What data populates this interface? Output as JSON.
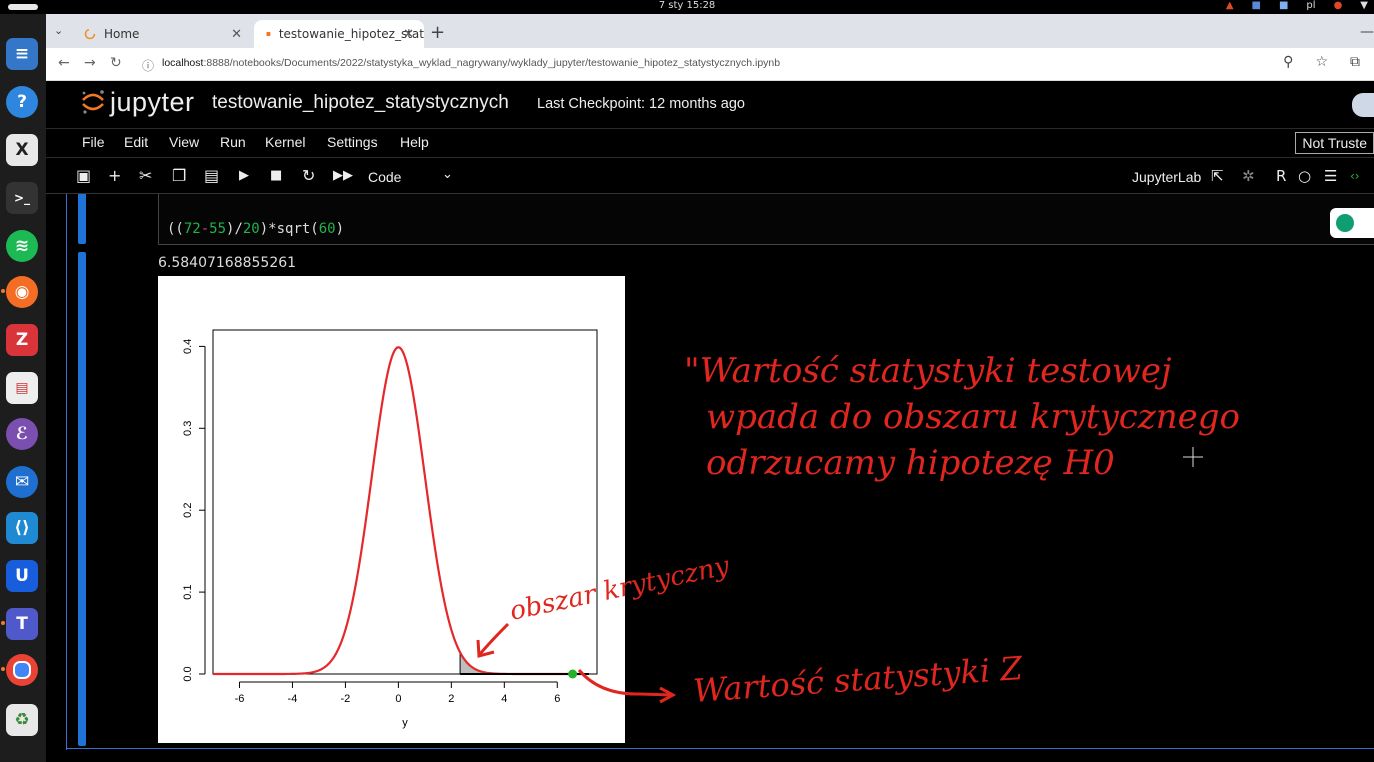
{
  "topbar": {
    "clock": "7 sty  15:28",
    "lang": "pl"
  },
  "browser": {
    "tabs": [
      {
        "label": "Home"
      },
      {
        "label": "testowanie_hipotez_stat"
      }
    ],
    "url_host": "localhost",
    "url_rest": ":8888/notebooks/Documents/2022/statystyka_wyklad_nagrywany/wyklady_jupyter/testowanie_hipotez_statystycznych.ipynb"
  },
  "jupyter": {
    "brand": "jupyter",
    "notebook_title": "testowanie_hipotez_statystycznych",
    "checkpoint": "Last Checkpoint: 12 months ago",
    "menu": [
      "File",
      "Edit",
      "View",
      "Run",
      "Kernel",
      "Settings",
      "Help"
    ],
    "trust_label": "Not Truste",
    "cell_type": "Code",
    "jupyterlab_label": "JupyterLab",
    "kernel_letter": "R"
  },
  "cell": {
    "code_tokens": [
      {
        "t": "((",
        "c": "p"
      },
      {
        "t": "72",
        "c": "n"
      },
      {
        "t": "-",
        "c": "o"
      },
      {
        "t": "55",
        "c": "n"
      },
      {
        "t": ")/",
        "c": "p"
      },
      {
        "t": "20",
        "c": "n"
      },
      {
        "t": ")*sqrt(",
        "c": "p"
      },
      {
        "t": "60",
        "c": "n"
      },
      {
        "t": ")",
        "c": "p"
      }
    ],
    "output": "6.58407168855261"
  },
  "chart_data": {
    "type": "line",
    "title": "",
    "xlabel": "y",
    "ylabel": "",
    "xlim": [
      -7,
      7.5
    ],
    "ylim": [
      0,
      0.42
    ],
    "x_ticks": [
      "-6",
      "-4",
      "-2",
      "0",
      "2",
      "4",
      "6"
    ],
    "y_ticks": [
      "0.0",
      "0.1",
      "0.2",
      "0.3",
      "0.4"
    ],
    "curve": "standard normal density, x from -7 to 7",
    "curve_color": "#e5282b",
    "shaded_from": 2.33,
    "shaded_color": "#bebebe",
    "point": {
      "x": 6.58,
      "y": 0,
      "color": "#22b22c"
    }
  },
  "annotations": {
    "line1": "\"Wartość statystyki testowej",
    "line2": "wpada do obszaru krytycznego",
    "line3": "odrzucamy hipotezę H0",
    "critical_region": "obszar krytyczny",
    "z_value": "Wartość statystyki Z"
  }
}
